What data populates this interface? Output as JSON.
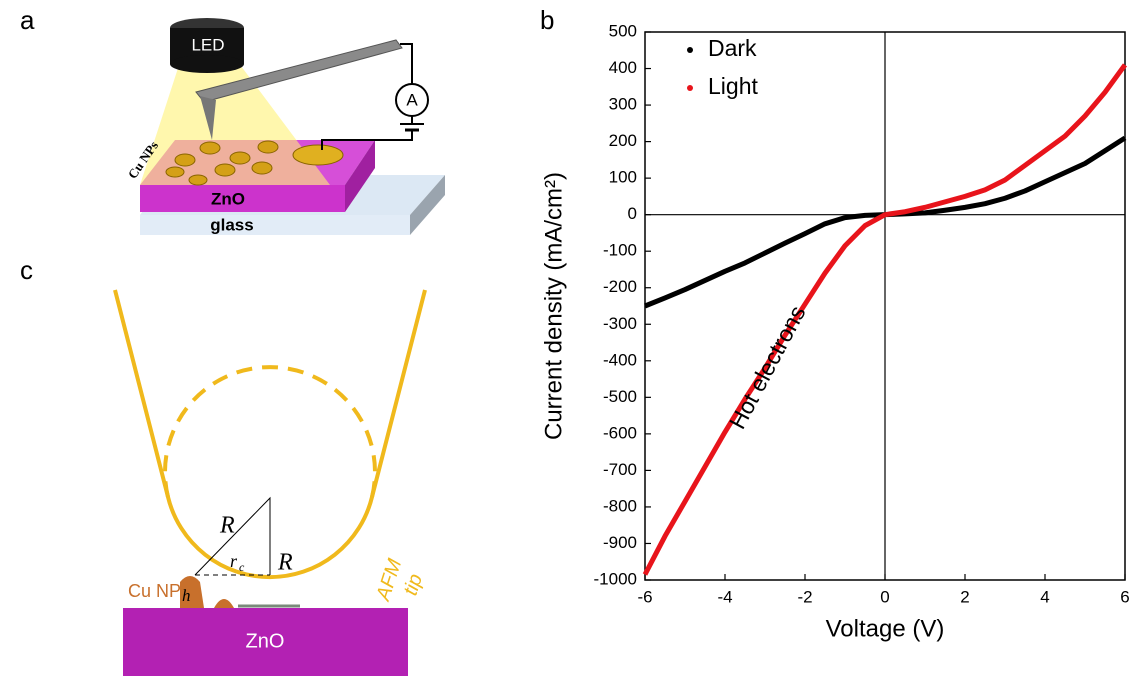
{
  "panel_a": {
    "label": "a",
    "led": "LED",
    "meter": "A",
    "particles": "Cu NPs",
    "film": "ZnO",
    "substrate": "glass"
  },
  "panel_b": {
    "label": "b"
  },
  "panel_c": {
    "label": "c",
    "radius_1": "R",
    "radius_2": "R",
    "contact": "r",
    "contact_sub": "c",
    "height": "h",
    "particle": "Cu NP",
    "tip_1": "AFM",
    "tip_2": "tip",
    "film": "ZnO"
  },
  "chart_data": {
    "type": "line",
    "x_label": "Voltage (V)",
    "y_label": "Current density (mA/cm²)",
    "annotation": "Hot electrons",
    "x": [
      -6,
      -5.5,
      -5,
      -4.5,
      -4,
      -3.5,
      -3,
      -2.5,
      -2,
      -1.5,
      -1,
      -0.5,
      0,
      0.5,
      1,
      1.5,
      2,
      2.5,
      3,
      3.5,
      4,
      4.5,
      5,
      5.5,
      6
    ],
    "series": [
      {
        "name": "Dark",
        "color": "#000000",
        "values": [
          -250,
          -228,
          -205,
          -180,
          -155,
          -132,
          -105,
          -78,
          -52,
          -25,
          -8,
          -2,
          0,
          2,
          5,
          12,
          20,
          30,
          45,
          65,
          90,
          115,
          140,
          175,
          210
        ]
      },
      {
        "name": "Light",
        "color": "#e8141b",
        "values": [
          -985,
          -880,
          -785,
          -690,
          -595,
          -505,
          -420,
          -330,
          -245,
          -160,
          -85,
          -30,
          0,
          8,
          20,
          35,
          50,
          68,
          95,
          135,
          175,
          215,
          270,
          335,
          410
        ]
      }
    ],
    "xlim": [
      -6,
      6
    ],
    "xticks": [
      -6,
      -4,
      -2,
      0,
      2,
      4,
      6
    ],
    "ylim": [
      -1000,
      500
    ],
    "yticks": [
      -1000,
      -900,
      -800,
      -700,
      -600,
      -500,
      -400,
      -300,
      -200,
      -100,
      0,
      100,
      200,
      300,
      400,
      500
    ],
    "legend": "upper left",
    "zero_lines": true
  }
}
